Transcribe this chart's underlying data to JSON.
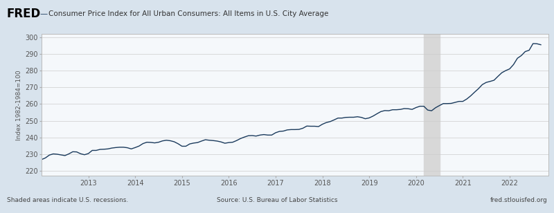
{
  "title": "Consumer Price Index for All Urban Consumers: All Items in U.S. City Average",
  "ylabel": "Index 1982-1984=100",
  "line_color": "#1a3a5c",
  "background_color": "#d8e3ed",
  "plot_bg_color": "#f5f8fb",
  "header_bg_color": "#d0dce8",
  "recession_color": "#d8d8d8",
  "recession_alpha": 1.0,
  "recession_start": 2020.167,
  "recession_end": 2020.5,
  "yticks": [
    220,
    230,
    240,
    250,
    260,
    270,
    280,
    290,
    300
  ],
  "ylim": [
    217,
    302
  ],
  "xlim": [
    2012.0,
    2022.83
  ],
  "footer_left": "Shaded areas indicate U.S. recessions.",
  "footer_center": "Source: U.S. Bureau of Labor Statistics",
  "footer_right": "fred.stlouisfed.org",
  "xtick_positions": [
    2013,
    2014,
    2015,
    2016,
    2017,
    2018,
    2019,
    2020,
    2021,
    2022
  ],
  "data": {
    "dates": [
      2012.0,
      2012.083,
      2012.167,
      2012.25,
      2012.333,
      2012.417,
      2012.5,
      2012.583,
      2012.667,
      2012.75,
      2012.833,
      2012.917,
      2013.0,
      2013.083,
      2013.167,
      2013.25,
      2013.333,
      2013.417,
      2013.5,
      2013.583,
      2013.667,
      2013.75,
      2013.833,
      2013.917,
      2014.0,
      2014.083,
      2014.167,
      2014.25,
      2014.333,
      2014.417,
      2014.5,
      2014.583,
      2014.667,
      2014.75,
      2014.833,
      2014.917,
      2015.0,
      2015.083,
      2015.167,
      2015.25,
      2015.333,
      2015.417,
      2015.5,
      2015.583,
      2015.667,
      2015.75,
      2015.833,
      2015.917,
      2016.0,
      2016.083,
      2016.167,
      2016.25,
      2016.333,
      2016.417,
      2016.5,
      2016.583,
      2016.667,
      2016.75,
      2016.833,
      2016.917,
      2017.0,
      2017.083,
      2017.167,
      2017.25,
      2017.333,
      2017.417,
      2017.5,
      2017.583,
      2017.667,
      2017.75,
      2017.833,
      2017.917,
      2018.0,
      2018.083,
      2018.167,
      2018.25,
      2018.333,
      2018.417,
      2018.5,
      2018.583,
      2018.667,
      2018.75,
      2018.833,
      2018.917,
      2019.0,
      2019.083,
      2019.167,
      2019.25,
      2019.333,
      2019.417,
      2019.5,
      2019.583,
      2019.667,
      2019.75,
      2019.833,
      2019.917,
      2020.0,
      2020.083,
      2020.167,
      2020.25,
      2020.333,
      2020.417,
      2020.5,
      2020.583,
      2020.667,
      2020.75,
      2020.833,
      2020.917,
      2021.0,
      2021.083,
      2021.167,
      2021.25,
      2021.333,
      2021.417,
      2021.5,
      2021.583,
      2021.667,
      2021.75,
      2021.833,
      2021.917,
      2022.0,
      2022.083,
      2022.167,
      2022.25,
      2022.333,
      2022.417,
      2022.5,
      2022.583,
      2022.667
    ],
    "values": [
      226.7,
      227.7,
      229.4,
      230.1,
      229.9,
      229.5,
      229.1,
      230.1,
      231.4,
      231.3,
      230.2,
      229.6,
      230.3,
      232.2,
      232.2,
      232.8,
      232.9,
      233.1,
      233.6,
      233.9,
      234.1,
      234.1,
      233.8,
      233.1,
      233.9,
      234.8,
      236.3,
      237.1,
      237.0,
      236.7,
      237.1,
      237.9,
      238.3,
      238.0,
      237.4,
      236.2,
      234.7,
      234.7,
      236.1,
      236.6,
      236.9,
      237.8,
      238.6,
      238.3,
      238.1,
      237.8,
      237.3,
      236.5,
      236.9,
      237.1,
      238.1,
      239.3,
      240.2,
      241.0,
      241.1,
      240.8,
      241.4,
      241.7,
      241.4,
      241.4,
      242.8,
      243.6,
      243.8,
      244.5,
      244.7,
      244.7,
      244.8,
      245.5,
      246.8,
      246.7,
      246.7,
      246.5,
      247.9,
      248.9,
      249.5,
      250.5,
      251.6,
      251.6,
      252.0,
      252.1,
      252.1,
      252.4,
      252.0,
      251.2,
      251.7,
      252.8,
      254.2,
      255.5,
      256.1,
      256.0,
      256.6,
      256.6,
      256.8,
      257.3,
      257.2,
      256.8,
      257.9,
      258.7,
      258.7,
      256.4,
      256.0,
      257.8,
      259.1,
      260.3,
      260.3,
      260.4,
      261.0,
      261.6,
      261.6,
      263.0,
      264.9,
      267.1,
      269.2,
      271.7,
      273.0,
      273.6,
      274.3,
      276.6,
      278.8,
      280.1,
      281.1,
      283.7,
      287.5,
      289.1,
      291.5,
      292.3,
      296.3,
      296.2,
      295.6
    ]
  }
}
